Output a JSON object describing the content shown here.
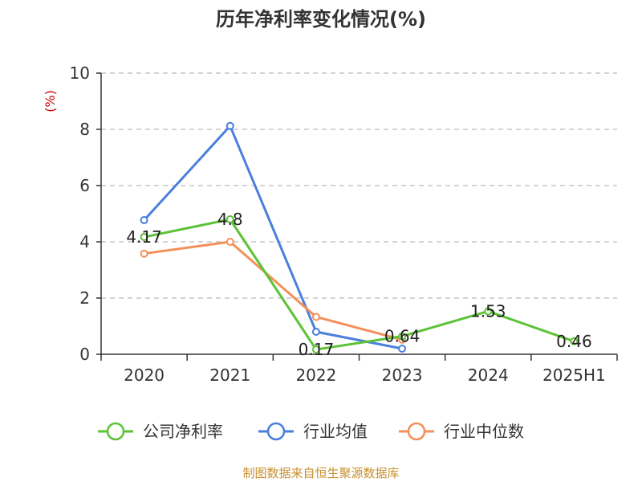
{
  "chart_data": {
    "type": "line",
    "title": "历年净利率变化情况(%)",
    "unit_label": "(%)",
    "categories": [
      "2020",
      "2021",
      "2022",
      "2023",
      "2024",
      "2025H1"
    ],
    "ylim": [
      0,
      10
    ],
    "yticks": [
      0,
      2,
      4,
      6,
      8,
      10
    ],
    "grid": true,
    "legend_position": "bottom",
    "series": [
      {
        "name": "公司净利率",
        "color": "#5cc236",
        "values": [
          4.17,
          4.8,
          0.17,
          0.64,
          1.53,
          0.46
        ],
        "labels": [
          "4.17",
          "4.8",
          "0.17",
          "0.64",
          "1.53",
          "0.46"
        ]
      },
      {
        "name": "行业均值",
        "color": "#4a7fdc",
        "values": [
          4.77,
          8.12,
          0.8,
          0.2,
          null,
          null
        ]
      },
      {
        "name": "行业中位数",
        "color": "#f58f5a",
        "values": [
          3.58,
          4.0,
          1.33,
          0.52,
          null,
          null
        ]
      }
    ],
    "source": "制图数据来自恒生聚源数据库"
  }
}
